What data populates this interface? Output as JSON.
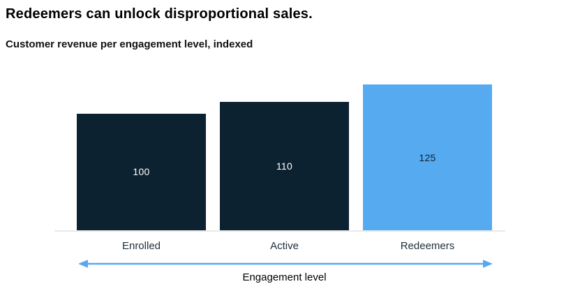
{
  "chart_data": {
    "type": "bar",
    "title": "Redeemers can unlock disproportional sales.",
    "subtitle": "Customer revenue per engagement level, indexed",
    "categories": [
      "Enrolled",
      "Active",
      "Redeemers"
    ],
    "values": [
      100,
      110,
      125
    ],
    "xlabel": "Engagement level",
    "ylabel": "",
    "ylim": [
      0,
      125
    ],
    "grid": false,
    "legend": "none",
    "value_labels_shown": true,
    "bar_colors": [
      "#0D2231",
      "#0D2231",
      "#56AAF0"
    ],
    "value_label_colors": [
      "#FFFFFF",
      "#FFFFFF",
      "#10202C"
    ],
    "x_axis_annotation": {
      "type": "double-headed-arrow",
      "label": "Engagement level",
      "color": "#56A9F0"
    }
  },
  "colors": {
    "background": "#FFFFFF",
    "bar_primary": "#0D2231",
    "bar_highlight": "#56AAF0",
    "axis_baseline": "#E8E9EA",
    "arrow": "#56A9F0",
    "title_text": "#000000",
    "category_text": "#20303B"
  }
}
